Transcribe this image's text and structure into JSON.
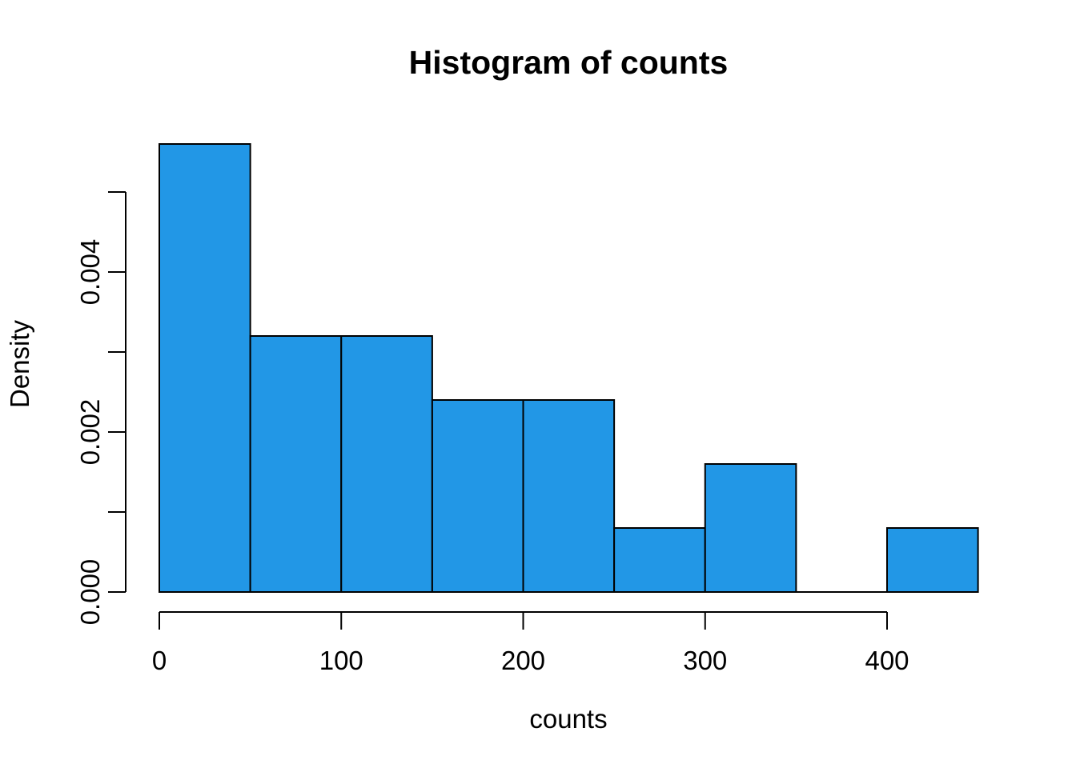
{
  "colors": {
    "bar_fill": "#2297E6",
    "bar_border": "#000000",
    "axis": "#000000",
    "text": "#000000",
    "background": "#FFFFFF"
  },
  "chart_data": {
    "type": "bar",
    "subtype": "histogram",
    "title": "Histogram of counts",
    "xlabel": "counts",
    "ylabel": "Density",
    "n_observations": 25,
    "bin_width": 50,
    "xlim": [
      0,
      450
    ],
    "ylim": [
      0,
      0.005
    ],
    "grid": "off",
    "legend": "none",
    "bins": [
      {
        "start": 0,
        "end": 50,
        "count": 7,
        "density": 0.0056
      },
      {
        "start": 50,
        "end": 100,
        "count": 4,
        "density": 0.0032
      },
      {
        "start": 100,
        "end": 150,
        "count": 4,
        "density": 0.0032
      },
      {
        "start": 150,
        "end": 200,
        "count": 3,
        "density": 0.0024
      },
      {
        "start": 200,
        "end": 250,
        "count": 3,
        "density": 0.0024
      },
      {
        "start": 250,
        "end": 300,
        "count": 1,
        "density": 0.0008
      },
      {
        "start": 300,
        "end": 350,
        "count": 2,
        "density": 0.0016
      },
      {
        "start": 350,
        "end": 400,
        "count": 0,
        "density": 0.0
      },
      {
        "start": 400,
        "end": 450,
        "count": 1,
        "density": 0.0008
      }
    ],
    "x_ticks": [
      {
        "value": 0,
        "label": "0"
      },
      {
        "value": 100,
        "label": "100"
      },
      {
        "value": 200,
        "label": "200"
      },
      {
        "value": 300,
        "label": "300"
      },
      {
        "value": 400,
        "label": "400"
      }
    ],
    "y_ticks": [
      {
        "value": 0.0,
        "label": "0.000"
      },
      {
        "value": 0.001,
        "label": ""
      },
      {
        "value": 0.002,
        "label": "0.002"
      },
      {
        "value": 0.003,
        "label": ""
      },
      {
        "value": 0.004,
        "label": "0.004"
      },
      {
        "value": 0.005,
        "label": ""
      }
    ]
  }
}
